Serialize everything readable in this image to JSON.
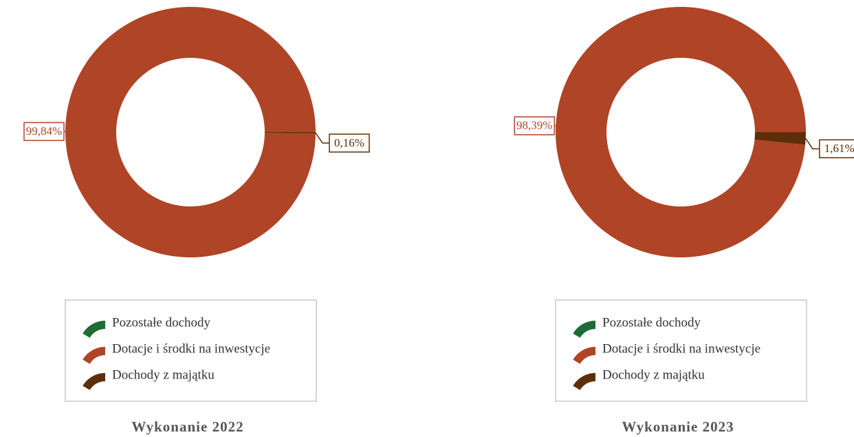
{
  "chart_data": [
    {
      "type": "pie",
      "title": "Wykonanie 2022",
      "categories": [
        "Pozostałe dochody",
        "Dotacje i środki na inwestycje",
        "Dochody z majątku"
      ],
      "values": [
        0,
        99.84,
        0.16
      ],
      "value_labels": [
        null,
        "99,84%",
        "0,16%"
      ],
      "colors": [
        "#1e6b35",
        "#b04427",
        "#5c2e0a"
      ]
    },
    {
      "type": "pie",
      "title": "Wykonanie 2023",
      "categories": [
        "Pozostałe dochody",
        "Dotacje i środki na inwestycje",
        "Dochody z majątku"
      ],
      "values": [
        0,
        98.39,
        1.61
      ],
      "value_labels": [
        null,
        "98,39%",
        "1,61%"
      ],
      "colors": [
        "#1e6b35",
        "#b04427",
        "#5c2e0a"
      ]
    }
  ]
}
